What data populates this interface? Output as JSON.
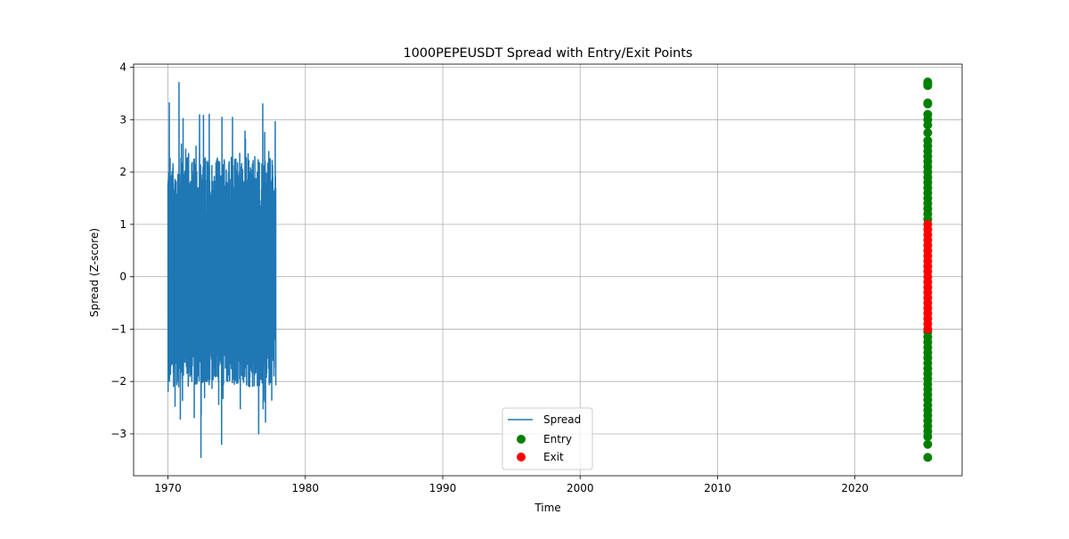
{
  "chart_data": {
    "type": "line",
    "title": "1000PEPEUSDT Spread with Entry/Exit Points",
    "xlabel": "Time",
    "ylabel": "Spread (Z-score)",
    "xlim": [
      1967.5,
      2027.8
    ],
    "ylim": [
      -3.8,
      4.06
    ],
    "xticks": [
      1970,
      1980,
      1990,
      2000,
      2010,
      2020
    ],
    "yticks": [
      -3,
      -2,
      -1,
      0,
      1,
      2,
      3,
      4
    ],
    "grid": true,
    "legend_position": "lower-center",
    "colors": {
      "spread": "#1f77b4",
      "entry": "#008000",
      "exit": "#ff0000",
      "grid": "#b0b0b0",
      "legend_border": "#cccccc"
    },
    "series": [
      {
        "name": "Spread",
        "kind": "line",
        "x_range": [
          1970.0,
          1977.85
        ],
        "y_min": -3.45,
        "y_max": 3.71,
        "noted_peaks": [
          {
            "x": 1970.1,
            "y": 3.32
          },
          {
            "x": 1970.8,
            "y": 3.71
          },
          {
            "x": 1971.1,
            "y": 3.02
          },
          {
            "x": 1972.3,
            "y": 3.09
          },
          {
            "x": 1972.4,
            "y": -3.45
          },
          {
            "x": 1973.0,
            "y": 3.1
          },
          {
            "x": 1973.9,
            "y": -3.2
          },
          {
            "x": 1976.6,
            "y": 3.65
          },
          {
            "x": 1976.9,
            "y": 3.3
          },
          {
            "x": 1976.6,
            "y": -3.0
          }
        ]
      },
      {
        "name": "Entry",
        "kind": "scatter",
        "x": 2025.3,
        "y": [
          3.72,
          3.68,
          3.65,
          3.32,
          3.3,
          3.1,
          3.0,
          2.9,
          2.75,
          2.6,
          2.5,
          2.4,
          2.3,
          2.2,
          2.1,
          2.0,
          1.9,
          1.8,
          1.7,
          1.6,
          1.5,
          1.4,
          1.3,
          1.2,
          1.1,
          -1.05,
          -1.15,
          -1.25,
          -1.35,
          -1.45,
          -1.55,
          -1.65,
          -1.75,
          -1.85,
          -1.95,
          -2.05,
          -2.15,
          -2.25,
          -2.35,
          -2.45,
          -2.55,
          -2.65,
          -2.75,
          -2.85,
          -2.95,
          -3.05,
          -3.2,
          -3.45
        ]
      },
      {
        "name": "Exit",
        "kind": "scatter",
        "x": 2025.3,
        "y": [
          1.0,
          0.9,
          0.8,
          0.7,
          0.6,
          0.5,
          0.4,
          0.3,
          0.2,
          0.1,
          0.0,
          -0.1,
          -0.2,
          -0.3,
          -0.4,
          -0.5,
          -0.6,
          -0.7,
          -0.8,
          -0.9,
          -1.0
        ]
      }
    ]
  }
}
